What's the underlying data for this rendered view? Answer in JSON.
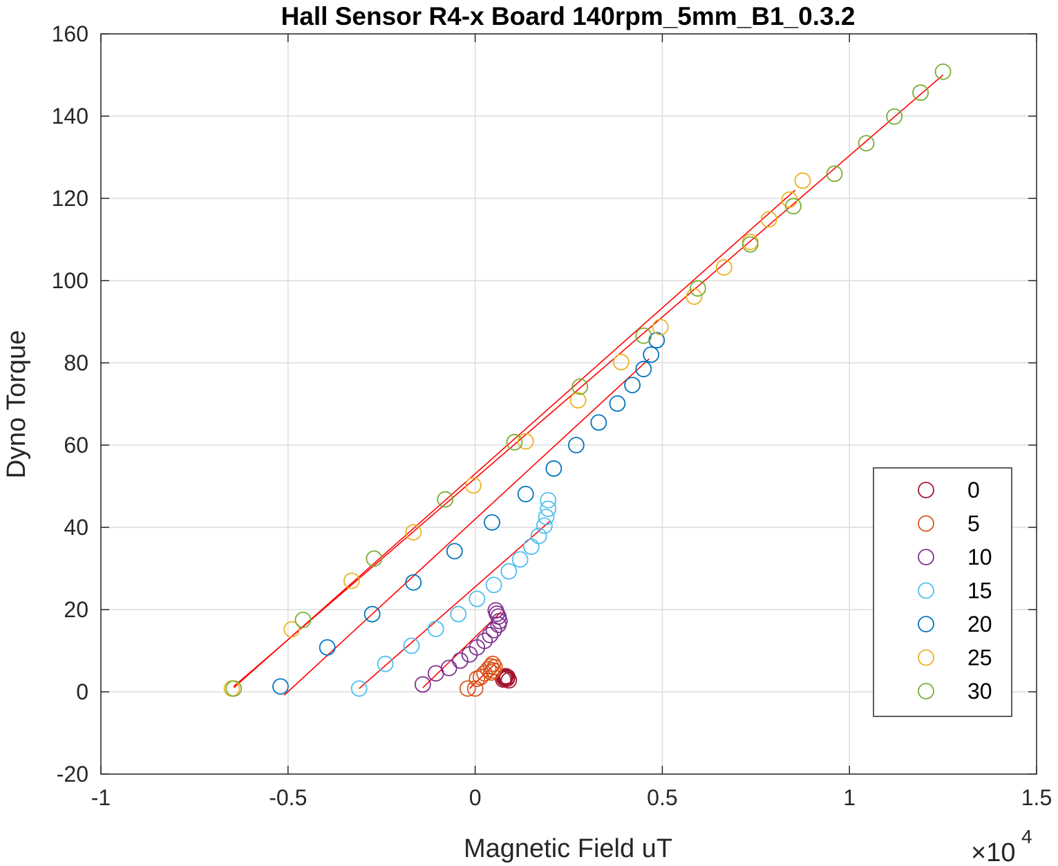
{
  "chart_data": {
    "type": "scatter",
    "title": "Hall Sensor R4-x Board 140rpm_5mm_B1_0.3.2",
    "xlabel": "Magnetic Field uT",
    "ylabel": "Dyno Torque",
    "x_exponent_label": "×10",
    "x_exponent": "4",
    "xlim": [
      -10000,
      15000
    ],
    "ylim": [
      -20,
      160
    ],
    "xticks": [
      -10000,
      -5000,
      0,
      5000,
      10000,
      15000
    ],
    "xtick_labels": [
      "-1",
      "-0.5",
      "0",
      "0.5",
      "1",
      "1.5"
    ],
    "yticks": [
      -20,
      0,
      20,
      40,
      60,
      80,
      100,
      120,
      140,
      160
    ],
    "ytick_labels": [
      "-20",
      "0",
      "20",
      "40",
      "60",
      "80",
      "100",
      "120",
      "140",
      "160"
    ],
    "grid": true,
    "legend_position": "bottom-right",
    "fit_line_color": "#FF0000",
    "series": [
      {
        "name": "0",
        "color": "#A2142F",
        "x": [
          750,
          800,
          850,
          900,
          820,
          780,
          860
        ],
        "y": [
          3.0,
          3.5,
          3.2,
          2.8,
          3.8,
          3.3,
          3.6
        ]
      },
      {
        "name": "5",
        "color": "#D95319",
        "x": [
          -200,
          0,
          50,
          150,
          250,
          350,
          420,
          470,
          520,
          480,
          430
        ],
        "y": [
          0.8,
          0.8,
          3.2,
          3.6,
          4.5,
          5.5,
          6.2,
          6.8,
          6.0,
          5.2,
          4.7
        ],
        "fit": [
          [
            -150,
            0.8
          ],
          [
            550,
            7.0
          ]
        ]
      },
      {
        "name": "10",
        "color": "#7E2F8E",
        "x": [
          -1400,
          -1050,
          -700,
          -400,
          -150,
          50,
          250,
          400,
          500,
          620,
          650,
          620,
          580,
          550
        ],
        "y": [
          1.8,
          4.5,
          5.8,
          7.6,
          9.1,
          10.8,
          12.4,
          13.8,
          15.0,
          16.3,
          17.2,
          18.3,
          19.0,
          19.8
        ],
        "fit": [
          [
            -1400,
            1.0
          ],
          [
            700,
            19.5
          ]
        ]
      },
      {
        "name": "15",
        "color": "#4DBEEE",
        "x": [
          -3100,
          -2400,
          -1700,
          -1050,
          -450,
          50,
          500,
          900,
          1200,
          1500,
          1700,
          1850,
          1900,
          1950,
          1950
        ],
        "y": [
          0.8,
          6.8,
          11.2,
          15.3,
          18.9,
          22.6,
          26.0,
          29.3,
          32.2,
          35.3,
          37.9,
          40.4,
          42.5,
          44.5,
          46.6
        ],
        "fit": [
          [
            -3100,
            0.8
          ],
          [
            2000,
            41.5
          ]
        ]
      },
      {
        "name": "20",
        "color": "#0072BD",
        "x": [
          -5200,
          -3950,
          -2750,
          -1650,
          -550,
          450,
          1350,
          2100,
          2700,
          3300,
          3800,
          4200,
          4500,
          4700,
          4850
        ],
        "y": [
          1.3,
          10.8,
          18.9,
          26.6,
          34.2,
          41.2,
          48.1,
          54.3,
          60.0,
          65.5,
          70.1,
          74.6,
          78.5,
          82.0,
          85.5
        ],
        "fit": [
          [
            -5100,
            -0.8
          ],
          [
            4650,
            81.0
          ]
        ]
      },
      {
        "name": "25",
        "color": "#EDB120",
        "x": [
          -6500,
          -4900,
          -3300,
          -1650,
          -50,
          1350,
          2750,
          3900,
          4950,
          5850,
          6650,
          7350,
          7850,
          8400,
          8750
        ],
        "y": [
          0.8,
          15.2,
          27.0,
          38.8,
          50.2,
          60.9,
          70.9,
          80.2,
          88.7,
          96.1,
          103.2,
          109.4,
          114.9,
          119.7,
          124.3
        ],
        "fit": [
          [
            -6450,
            1.0
          ],
          [
            8550,
            122.0
          ]
        ]
      },
      {
        "name": "30",
        "color": "#77AC30",
        "x": [
          -6450,
          -4600,
          -2700,
          -800,
          1050,
          2800,
          4500,
          5950,
          7350,
          8500,
          9600,
          10450,
          11200,
          11900,
          12500
        ],
        "y": [
          0.8,
          17.5,
          32.4,
          46.8,
          60.7,
          74.2,
          86.6,
          98.1,
          108.8,
          118.1,
          126.0,
          133.4,
          139.9,
          145.7,
          150.8
        ],
        "fit": [
          [
            -6450,
            1.3
          ],
          [
            12500,
            150.0
          ]
        ]
      }
    ]
  }
}
